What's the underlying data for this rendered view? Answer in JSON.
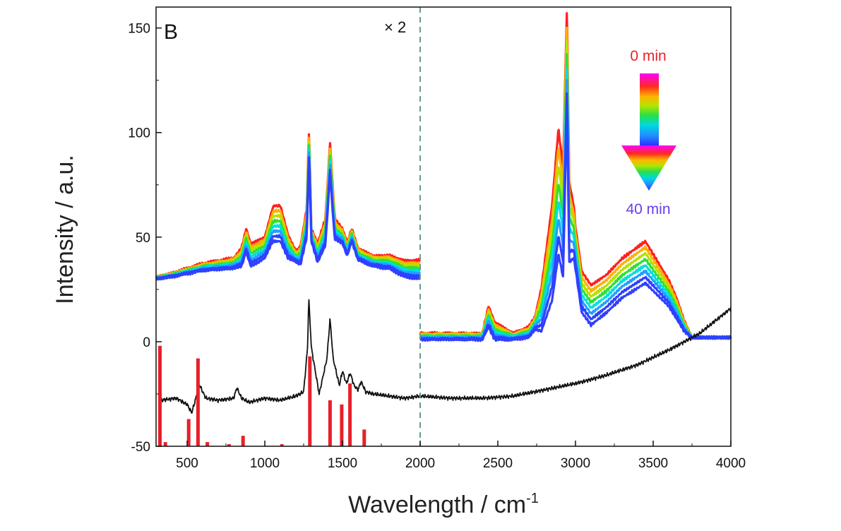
{
  "chart_data": {
    "type": "line",
    "panel_label": "B",
    "xlabel": "Wavelength / cm",
    "xlabel_superscript": "-1",
    "ylabel": "Intensity / a.u.",
    "xlim": [
      300,
      4000
    ],
    "ylim": [
      -50,
      160
    ],
    "x_ticks": [
      500,
      1000,
      1500,
      2000,
      2500,
      3000,
      3500,
      4000
    ],
    "x_tick_labels": [
      "500",
      "1000",
      "1500",
      "2000",
      "2500",
      "3000",
      "3500",
      "4000"
    ],
    "y_ticks": [
      -50,
      0,
      50,
      100,
      150
    ],
    "y_tick_labels": [
      "-50",
      "0",
      "50",
      "100",
      "150"
    ],
    "grid": false,
    "divider_x": 2000,
    "scale_annotation": "× 2",
    "time_start_label": "0 min",
    "time_end_label": "40 min",
    "colors": {
      "reference_line": "#111111",
      "stick_bars": "#e8202a",
      "divider": "#6a9a94",
      "time_start": "#e8202a",
      "time_end": "#6a3cf0",
      "time_gradient": [
        "#ff00ff",
        "#ff2020",
        "#ffb000",
        "#b8e000",
        "#30e030",
        "#00e0e0",
        "#20a0ff",
        "#3040ff"
      ]
    },
    "time_series": {
      "count": 8,
      "baseline_low": {
        "x": [
          300,
          400,
          600,
          800,
          850,
          880,
          910,
          1000,
          1050,
          1100,
          1150,
          1230,
          1270,
          1285,
          1300,
          1340,
          1390,
          1420,
          1450,
          1500,
          1530,
          1560,
          1600,
          1700,
          1800,
          1900,
          2000
        ],
        "y": [
          30,
          31,
          34,
          35,
          36,
          43,
          36,
          40,
          48,
          48,
          40,
          37,
          50,
          89,
          48,
          38,
          46,
          80,
          49,
          47,
          41,
          48,
          39,
          36,
          35,
          31,
          30
        ]
      },
      "offset_high_left": {
        "x": [
          300,
          800,
          880,
          1000,
          1060,
          1100,
          1200,
          1280,
          1300,
          1420,
          1460,
          1500,
          1560,
          1700,
          2000
        ],
        "dy": [
          1,
          5,
          11,
          10,
          17,
          17,
          5,
          15,
          6,
          15,
          9,
          7,
          6,
          5,
          9
        ]
      },
      "baseline_low_right": {
        "x": [
          2000,
          2400,
          2440,
          2480,
          2600,
          2700,
          2740,
          2780,
          2850,
          2890,
          2920,
          2945,
          2960,
          2990,
          3040,
          3100,
          3200,
          3300,
          3450,
          3600,
          3700,
          3750,
          4000
        ],
        "y": [
          1,
          1,
          7,
          1,
          1,
          2,
          6,
          5,
          20,
          42,
          31,
          115,
          38,
          40,
          14,
          8,
          14,
          21,
          28,
          17,
          5,
          2,
          2
        ]
      },
      "offset_high_right": {
        "x": [
          2000,
          2400,
          2440,
          2600,
          2740,
          2890,
          2945,
          3000,
          3200,
          3450,
          3650,
          3750,
          4000
        ],
        "dy": [
          3,
          3,
          10,
          3,
          6,
          60,
          45,
          20,
          18,
          20,
          10,
          0,
          0
        ]
      }
    },
    "reference_spectrum": {
      "name": "",
      "x": [
        330,
        430,
        500,
        530,
        560,
        575,
        620,
        700,
        800,
        820,
        850,
        900,
        1000,
        1100,
        1200,
        1250,
        1275,
        1283,
        1300,
        1350,
        1400,
        1420,
        1440,
        1480,
        1500,
        1525,
        1550,
        1575,
        1600,
        1620,
        1650,
        1700,
        1800,
        1900,
        2000,
        2200,
        2400,
        2600,
        2800,
        3000,
        3200,
        3400,
        3600,
        3700,
        3800,
        3900,
        4000
      ],
      "y": [
        -28,
        -27,
        -30,
        -34,
        -26,
        -20,
        -27,
        -28,
        -27,
        -22,
        -27,
        -29,
        -27,
        -28,
        -26,
        -24,
        -3,
        21,
        -3,
        -25,
        -8,
        11,
        -8,
        -21,
        -14,
        -20,
        -15,
        -21,
        -23,
        -19,
        -24,
        -25,
        -26,
        -27,
        -26,
        -27,
        -27,
        -26,
        -23,
        -20,
        -16,
        -11,
        -4,
        0,
        4,
        10,
        16
      ]
    },
    "stick_bars": {
      "x": [
        325,
        360,
        510,
        570,
        630,
        770,
        860,
        1110,
        1290,
        1420,
        1495,
        1548,
        1640
      ],
      "y": [
        -2,
        -48,
        -37,
        -8,
        -48,
        -49,
        -45,
        -49,
        -7,
        -28,
        -30,
        -20,
        -42
      ]
    }
  }
}
